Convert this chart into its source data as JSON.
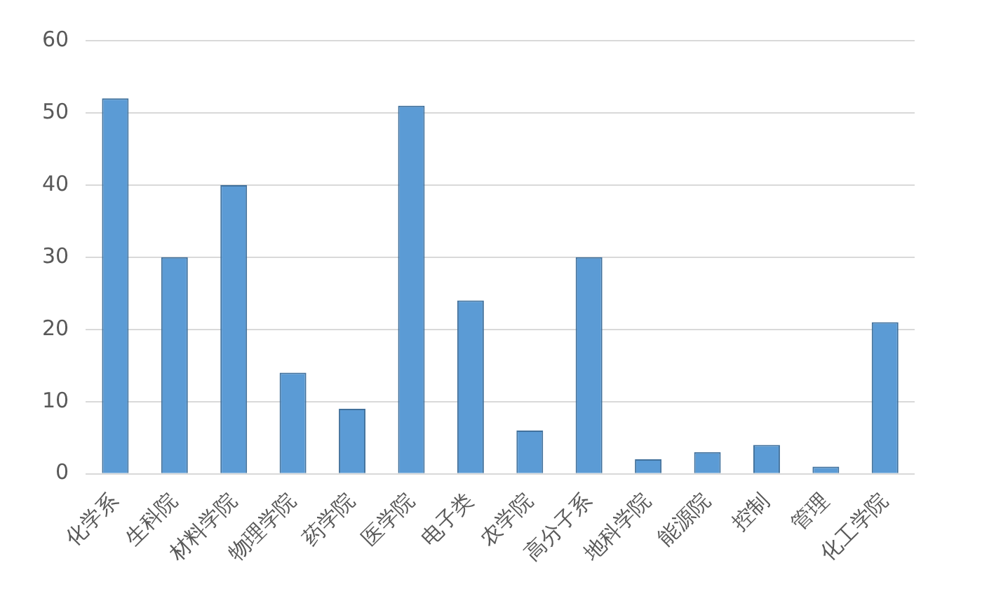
{
  "chart_data": {
    "type": "bar",
    "categories": [
      "化学系",
      "生科院",
      "材料学院",
      "物理学院",
      "药学院",
      "医学院",
      "电子类",
      "农学院",
      "高分子系",
      "地科学院",
      "能源院",
      "控制",
      "管理",
      "化工学院"
    ],
    "values": [
      52,
      30,
      40,
      14,
      9,
      51,
      24,
      6,
      30,
      2,
      3,
      4,
      1,
      21
    ],
    "color": "#5b9bd5",
    "ylim": [
      0,
      60
    ],
    "yticks": [
      0,
      10,
      20,
      30,
      40,
      50,
      60
    ],
    "grid": "y"
  }
}
